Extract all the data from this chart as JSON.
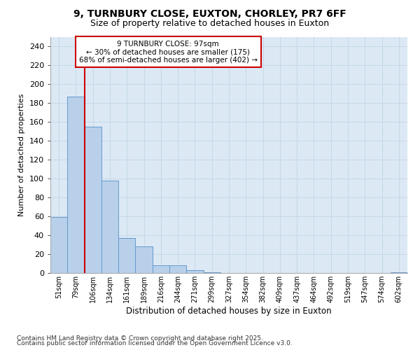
{
  "title_line1": "9, TURNBURY CLOSE, EUXTON, CHORLEY, PR7 6FF",
  "title_line2": "Size of property relative to detached houses in Euxton",
  "xlabel": "Distribution of detached houses by size in Euxton",
  "ylabel": "Number of detached properties",
  "bar_labels": [
    "51sqm",
    "79sqm",
    "106sqm",
    "134sqm",
    "161sqm",
    "189sqm",
    "216sqm",
    "244sqm",
    "271sqm",
    "299sqm",
    "327sqm",
    "354sqm",
    "382sqm",
    "409sqm",
    "437sqm",
    "464sqm",
    "492sqm",
    "519sqm",
    "547sqm",
    "574sqm",
    "602sqm"
  ],
  "bar_values": [
    59,
    187,
    155,
    98,
    37,
    28,
    8,
    8,
    3,
    1,
    0,
    0,
    0,
    0,
    0,
    0,
    0,
    0,
    0,
    0,
    1
  ],
  "bar_color": "#b8d0ea",
  "bar_edge_color": "#6699cc",
  "plot_bg_color": "#dce9f5",
  "fig_bg_color": "#ffffff",
  "grid_color": "#c8d8e8",
  "property_line_color": "#cc0000",
  "property_line_bin": 1.5,
  "annotation_text": "9 TURNBURY CLOSE: 97sqm\n← 30% of detached houses are smaller (175)\n68% of semi-detached houses are larger (402) →",
  "annotation_box_color": "#cc0000",
  "ylim": [
    0,
    250
  ],
  "yticks": [
    0,
    20,
    40,
    60,
    80,
    100,
    120,
    140,
    160,
    180,
    200,
    220,
    240
  ],
  "footer_line1": "Contains HM Land Registry data © Crown copyright and database right 2025.",
  "footer_line2": "Contains public sector information licensed under the Open Government Licence v3.0."
}
